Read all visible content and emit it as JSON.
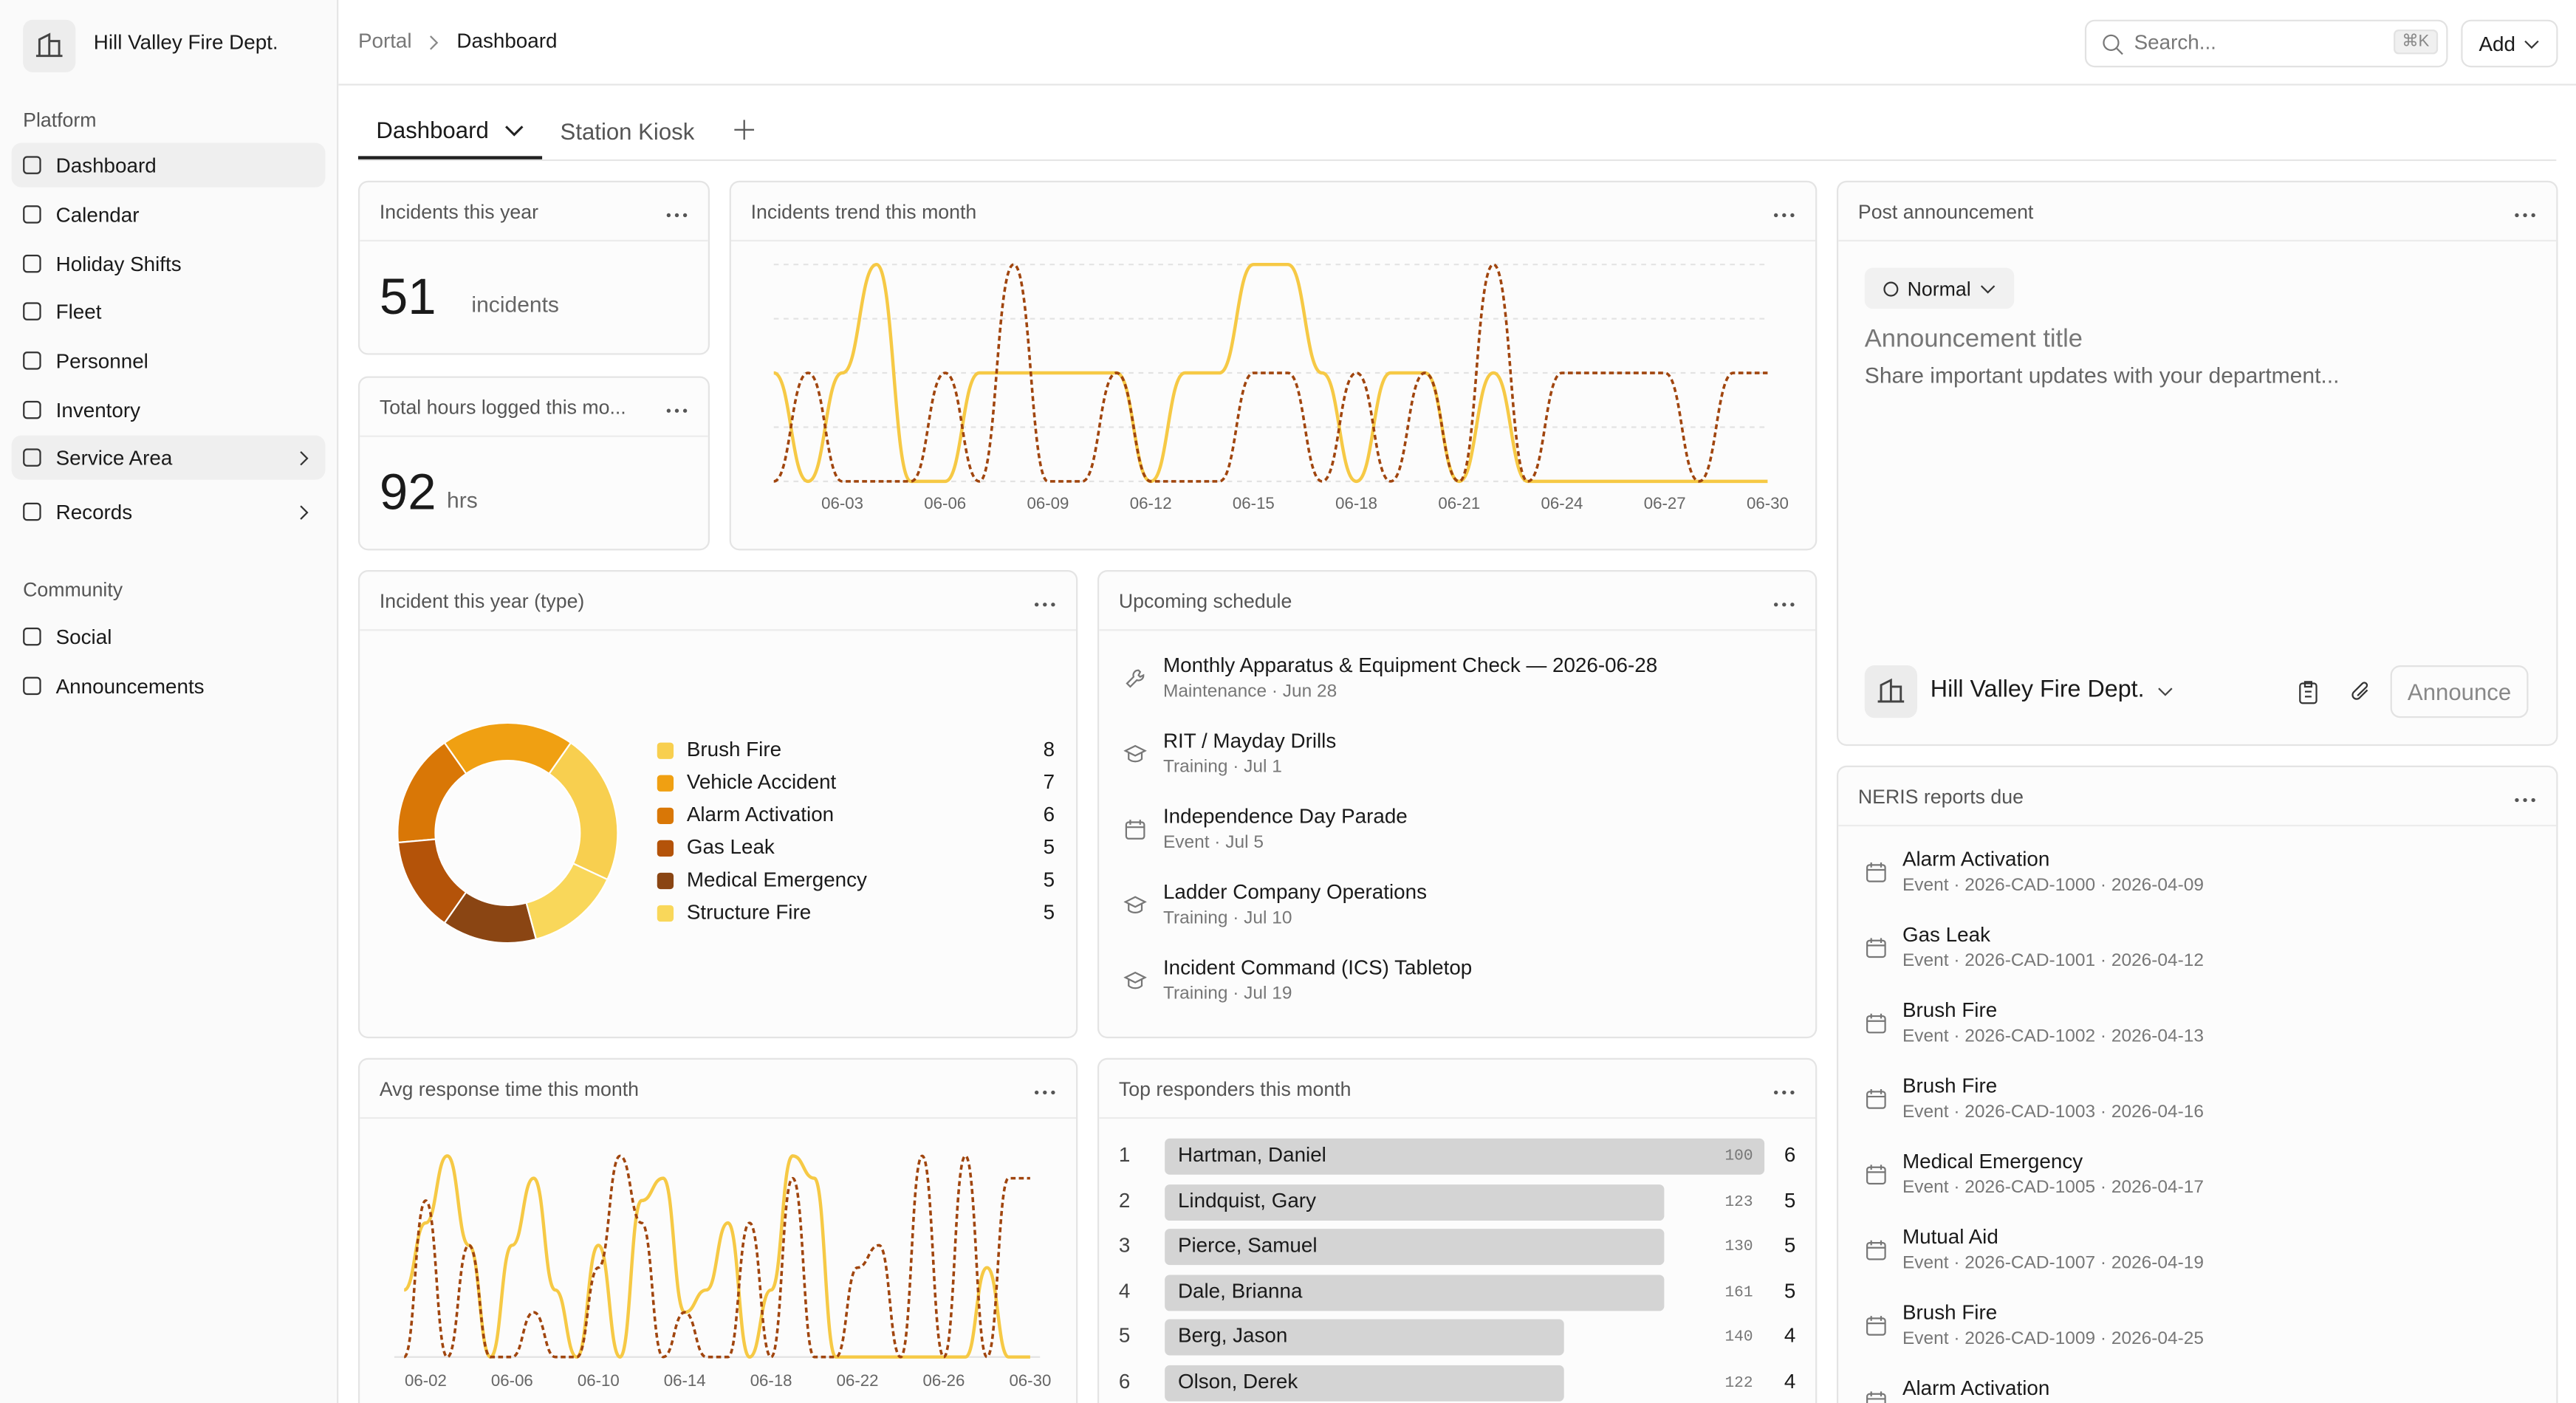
{
  "sidebar": {
    "org": "Hill Valley Fire Dept.",
    "sections": [
      {
        "title": "Platform",
        "items": [
          "Dashboard",
          "Calendar",
          "Holiday Shifts",
          "Fleet",
          "Personnel",
          "Inventory",
          "Service Area",
          "Records"
        ]
      },
      {
        "title": "Community",
        "items": [
          "Social",
          "Announcements"
        ]
      }
    ]
  },
  "topbar": {
    "breadcrumb": [
      "Portal",
      "Dashboard"
    ],
    "search_placeholder": "Search...",
    "shortcut": "⌘K",
    "add_button": "Add"
  },
  "tabs": [
    "Dashboard",
    "Station Kiosk"
  ],
  "kpis": [
    {
      "title": "Incidents this year",
      "value": 51,
      "unit": "incidents"
    },
    {
      "title": "Total hours logged this mo...",
      "value": 92,
      "unit": "hrs"
    }
  ],
  "chart_data": [
    {
      "type": "line",
      "title": "Incidents trend this month",
      "categories": [
        null,
        null,
        "06-03",
        null,
        null,
        "06-06",
        null,
        null,
        "06-09",
        null,
        null,
        "06-12",
        null,
        null,
        "06-15",
        null,
        null,
        "06-18",
        null,
        null,
        "06-21",
        null,
        null,
        "06-24",
        null,
        null,
        "06-27",
        null,
        null,
        "06-30"
      ],
      "series": [
        {
          "color": "#f6c945",
          "values": [
            1,
            0,
            1,
            2,
            0,
            0,
            1,
            1,
            1,
            1,
            1,
            0,
            1,
            1,
            2,
            2,
            1,
            0,
            1,
            1,
            0,
            1,
            0,
            0,
            0,
            0,
            0,
            0,
            0,
            0
          ]
        },
        {
          "color": "#a0450e",
          "dashed": true,
          "values": [
            0,
            1,
            0,
            0,
            0,
            1,
            0,
            2,
            0,
            0,
            1,
            0,
            0,
            0,
            1,
            1,
            0,
            1,
            0,
            1,
            0,
            2,
            0,
            1,
            1,
            1,
            1,
            0,
            1,
            1
          ]
        }
      ],
      "ylim": [
        0,
        2
      ],
      "grid": true
    },
    {
      "type": "donut",
      "title": "Incident this year (type)",
      "categories": [
        "Brush Fire",
        "Vehicle Accident",
        "Alarm Activation",
        "Gas Leak",
        "Medical Emergency",
        "Structure Fire"
      ],
      "values": [
        8,
        7,
        6,
        5,
        5,
        5
      ],
      "colors": [
        "#f8cf4f",
        "#f0a012",
        "#d97706",
        "#b45309",
        "#8a4513",
        "#f9d75a"
      ]
    },
    {
      "type": "line",
      "title": "Avg response time this month",
      "categories": [
        null,
        "06-02",
        null,
        null,
        null,
        "06-06",
        null,
        null,
        null,
        "06-10",
        null,
        null,
        null,
        "06-14",
        null,
        null,
        null,
        "06-18",
        null,
        null,
        null,
        "06-22",
        null,
        null,
        null,
        "06-26",
        null,
        null,
        null,
        "06-30"
      ],
      "series": [
        {
          "color": "#f6c945",
          "values": [
            3,
            6,
            9,
            5,
            0,
            5,
            8,
            3,
            0,
            5,
            0,
            7,
            8,
            2,
            3,
            6,
            0,
            3,
            9,
            8,
            0,
            0,
            0,
            0,
            0,
            0,
            0,
            4,
            0,
            0
          ]
        },
        {
          "color": "#a0450e",
          "dashed": true,
          "values": [
            0,
            7,
            0,
            5,
            0,
            0,
            2,
            0,
            0,
            4,
            9,
            6,
            0,
            2,
            0,
            0,
            6,
            0,
            8,
            0,
            0,
            4,
            5,
            0,
            9,
            0,
            9,
            0,
            8,
            8
          ]
        }
      ],
      "ylim": [
        0,
        10
      ],
      "grid": false
    }
  ],
  "announcement": {
    "title": "Post announcement",
    "priority": "Normal",
    "title_placeholder": "Announcement title",
    "body_placeholder": "Share important updates with your department...",
    "sender": "Hill Valley Fire Dept.",
    "button": "Announce"
  },
  "schedule": {
    "title": "Upcoming schedule",
    "items": [
      {
        "title": "Monthly Apparatus & Equipment Check — 2026-06-28",
        "meta": "Maintenance · Jun 28"
      },
      {
        "title": "RIT / Mayday Drills",
        "meta": "Training · Jul 1"
      },
      {
        "title": "Independence Day Parade",
        "meta": "Event · Jul 5"
      },
      {
        "title": "Ladder Company Operations",
        "meta": "Training · Jul 10"
      },
      {
        "title": "Incident Command (ICS) Tabletop",
        "meta": "Training · Jul 19"
      }
    ]
  },
  "neris": {
    "title": "NERIS reports due",
    "items": [
      {
        "title": "Alarm Activation",
        "meta": "Event · 2026-CAD-1000 · 2026-04-09"
      },
      {
        "title": "Gas Leak",
        "meta": "Event · 2026-CAD-1001 · 2026-04-12"
      },
      {
        "title": "Brush Fire",
        "meta": "Event · 2026-CAD-1002 · 2026-04-13"
      },
      {
        "title": "Brush Fire",
        "meta": "Event · 2026-CAD-1003 · 2026-04-16"
      },
      {
        "title": "Medical Emergency",
        "meta": "Event · 2026-CAD-1005 · 2026-04-17"
      },
      {
        "title": "Mutual Aid",
        "meta": "Event · 2026-CAD-1007 · 2026-04-19"
      },
      {
        "title": "Brush Fire",
        "meta": "Event · 2026-CAD-1009 · 2026-04-25"
      },
      {
        "title": "Alarm Activation"
      }
    ]
  },
  "responders": {
    "title": "Top responders this month",
    "rows": [
      {
        "rank": 1,
        "name": "Hartman, Daniel",
        "score": 100,
        "count": 6
      },
      {
        "rank": 2,
        "name": "Lindquist, Gary",
        "score": 123,
        "count": 5
      },
      {
        "rank": 3,
        "name": "Pierce, Samuel",
        "score": 130,
        "count": 5
      },
      {
        "rank": 4,
        "name": "Dale, Brianna",
        "score": 161,
        "count": 5
      },
      {
        "rank": 5,
        "name": "Berg, Jason",
        "score": 140,
        "count": 4
      },
      {
        "rank": 6,
        "name": "Olson, Derek",
        "score": 122,
        "count": 4
      }
    ]
  }
}
